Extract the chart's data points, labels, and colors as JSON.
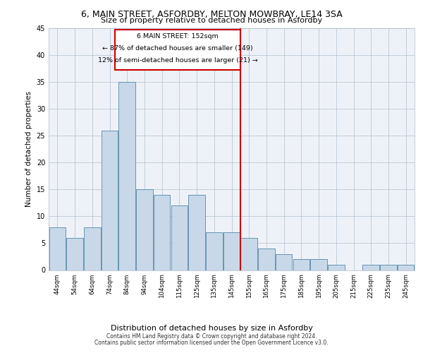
{
  "title1": "6, MAIN STREET, ASFORDBY, MELTON MOWBRAY, LE14 3SA",
  "title2": "Size of property relative to detached houses in Asfordby",
  "xlabel": "Distribution of detached houses by size in Asfordby",
  "ylabel": "Number of detached properties",
  "categories": [
    "44sqm",
    "54sqm",
    "64sqm",
    "74sqm",
    "84sqm",
    "94sqm",
    "104sqm",
    "115sqm",
    "125sqm",
    "135sqm",
    "145sqm",
    "155sqm",
    "165sqm",
    "175sqm",
    "185sqm",
    "195sqm",
    "205sqm",
    "215sqm",
    "225sqm",
    "235sqm",
    "245sqm"
  ],
  "values": [
    8,
    6,
    8,
    26,
    35,
    15,
    14,
    12,
    14,
    7,
    7,
    6,
    4,
    3,
    2,
    2,
    1,
    0,
    1,
    1,
    1
  ],
  "bar_color": "#c8d8e8",
  "bar_edge_color": "#5588aa",
  "marker_line_color": "#cc0000",
  "annotation_line1": "6 MAIN STREET: 152sqm",
  "annotation_line2": "← 87% of detached houses are smaller (149)",
  "annotation_line3": "12% of semi-detached houses are larger (21) →",
  "annotation_box_color": "#ffffff",
  "annotation_box_edge": "#cc0000",
  "ylim": [
    0,
    45
  ],
  "yticks": [
    0,
    5,
    10,
    15,
    20,
    25,
    30,
    35,
    40,
    45
  ],
  "background_color": "#eef2f8",
  "footer1": "Contains HM Land Registry data © Crown copyright and database right 2024.",
  "footer2": "Contains public sector information licensed under the Open Government Licence v3.0."
}
